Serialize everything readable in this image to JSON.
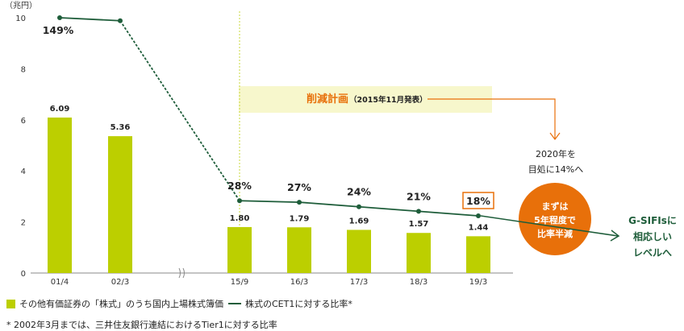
{
  "chart_data": {
    "type": "bar",
    "unit_label": "（兆円）",
    "categories": [
      "01/4",
      "02/3",
      "15/9",
      "16/3",
      "17/3",
      "18/3",
      "19/3"
    ],
    "y_axis": {
      "ticks": [
        "0",
        "2",
        "4",
        "6",
        "8",
        "10"
      ],
      "ylim": [
        0,
        10
      ]
    },
    "series": [
      {
        "name": "その他有価証券の「株式」のうち国内上場株式簿価",
        "values": [
          6.09,
          5.36,
          1.8,
          1.79,
          1.69,
          1.57,
          1.44
        ],
        "labels": [
          "6.09",
          "5.36",
          "1.80",
          "1.79",
          "1.69",
          "1.57",
          "1.44"
        ],
        "color": "#bccf00"
      },
      {
        "name": "株式のCET1に対する比率*",
        "type": "line",
        "values": [
          149,
          147,
          28,
          27,
          24,
          21,
          18
        ],
        "labels": [
          "149%",
          "",
          "28%",
          "27%",
          "24%",
          "21%",
          "18%"
        ],
        "color": "#1e5d3a"
      }
    ],
    "annotations": {
      "plan_label": "削減計画",
      "plan_sub": "（2015年11月発表）",
      "target_line1": "2020年を",
      "target_line2": "目処に14%へ",
      "circle_line1": "まずは",
      "circle_line2": "5年程度で",
      "circle_line3": "比率半減",
      "gsifi_line1": "G-SIFIsに",
      "gsifi_line2": "相応しい",
      "gsifi_line3": "レベルへ"
    },
    "legend": {
      "bar": "その他有価証券の「株式」のうち国内上場株式簿価",
      "line": "株式のCET1に対する比率*"
    },
    "footnote": "* 2002年3月までは、三井住友銀行連結におけるTier1に対する比率",
    "colors": {
      "bar": "#bccf00",
      "line": "#1e5d3a",
      "accent": "#e8700a",
      "highlight_band": "#f7f7cc"
    }
  }
}
